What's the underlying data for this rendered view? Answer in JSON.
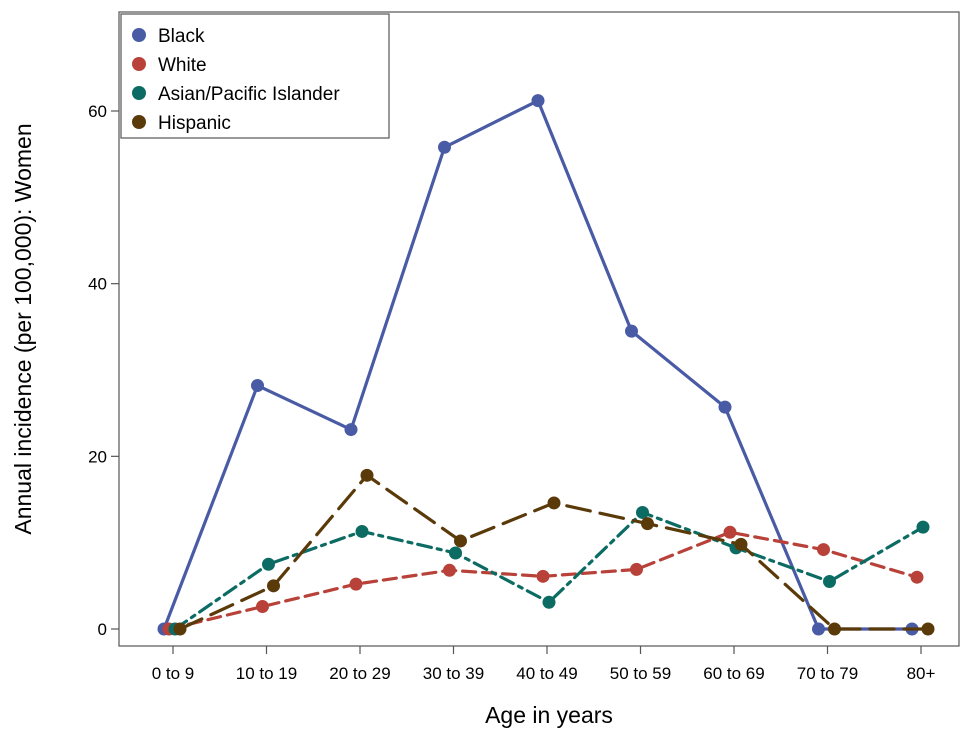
{
  "chart_data": {
    "type": "line",
    "title": "",
    "xlabel": "Age in years",
    "ylabel": "Annual incidence (per 100,000): Women",
    "categories": [
      "0 to 9",
      "10 to 19",
      "20 to 29",
      "30 to 39",
      "40 to 49",
      "50 to 59",
      "60 to 69",
      "70 to 79",
      "80+"
    ],
    "ylim": [
      0,
      70
    ],
    "yticks": [
      "0",
      "20",
      "40",
      "60"
    ],
    "grid": false,
    "legend_position": "top-left",
    "series": [
      {
        "name": "Black",
        "color": "#4a5ba6",
        "dash": "solid",
        "values": [
          0,
          28.2,
          23.1,
          55.8,
          61.2,
          34.5,
          25.7,
          0,
          0
        ]
      },
      {
        "name": "White",
        "color": "#b8423a",
        "dash": "dash",
        "values": [
          0,
          2.6,
          5.2,
          6.8,
          6.1,
          6.9,
          11.2,
          9.2,
          6.0
        ]
      },
      {
        "name": "Asian/Pacific Islander",
        "color": "#0c6b63",
        "dash": "dashdot",
        "values": [
          0,
          7.5,
          11.3,
          8.8,
          3.1,
          13.5,
          9.4,
          5.5,
          11.8
        ]
      },
      {
        "name": "Hispanic",
        "color": "#5b3a0a",
        "dash": "longdash",
        "values": [
          0,
          5.0,
          17.8,
          10.2,
          14.6,
          12.2,
          9.8,
          0,
          0
        ]
      }
    ]
  }
}
